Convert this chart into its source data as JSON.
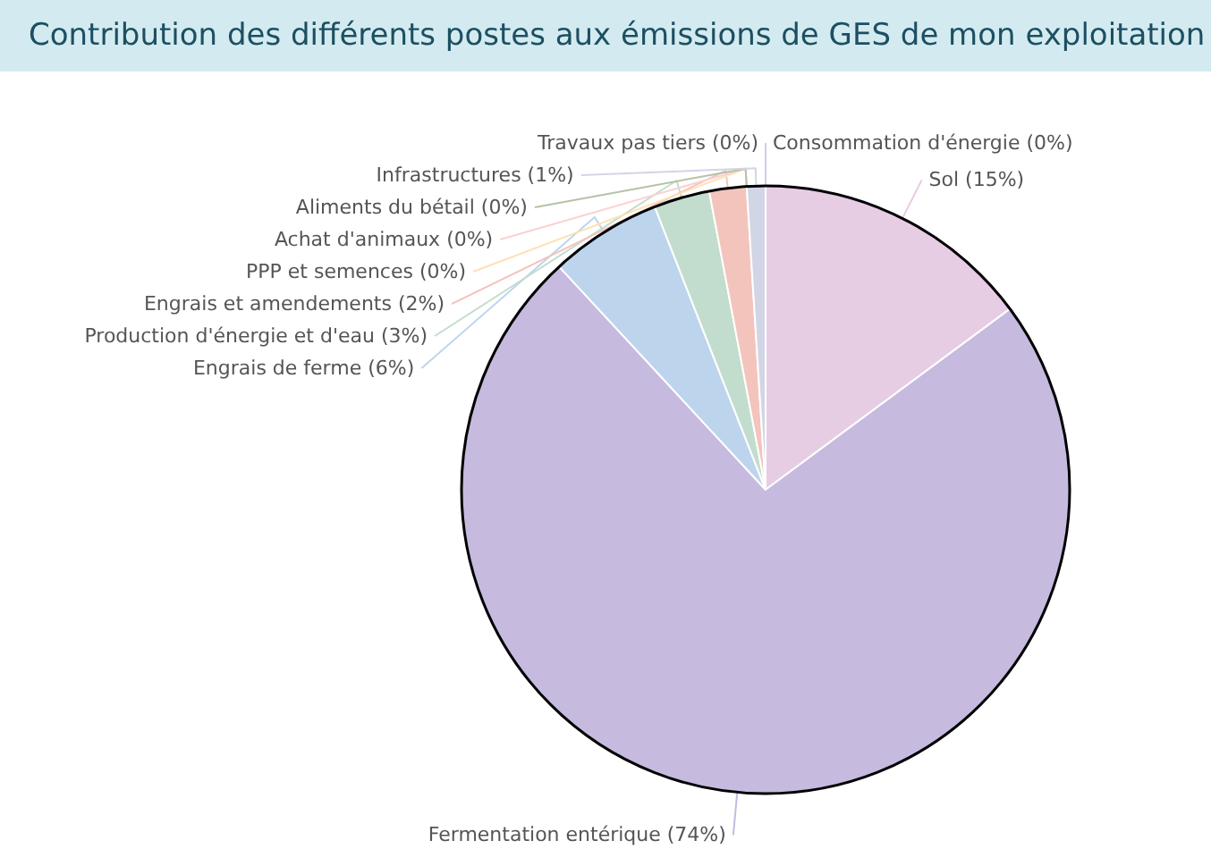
{
  "chart_data": {
    "type": "pie",
    "title": "Contribution des différents postes aux émissions de GES de mon exploitation",
    "categories": [
      "Consommation d'énergie",
      "Sol",
      "Fermentation entérique",
      "Engrais de ferme",
      "Production d'énergie et d'eau",
      "Engrais et amendements",
      "PPP et semences",
      "Achat d'animaux",
      "Aliments du bétail",
      "Infrastructures",
      "Travaux pas tiers"
    ],
    "values": [
      0,
      15,
      74,
      6,
      3,
      2,
      0,
      0,
      0,
      1,
      0
    ],
    "value_labels": [
      "(0%)",
      "(15%)",
      "(74%)",
      "(6%)",
      "(3%)",
      "(2%)",
      "(0%)",
      "(0%)",
      "(0%)",
      "(1%)",
      "(0%)"
    ],
    "colors": [
      "#f4c2d7",
      "#e7cde4",
      "#c6badf",
      "#bdd4ed",
      "#c2ddcd",
      "#f3c4bc",
      "#fde2b5",
      "#fbd1d1",
      "#b5c3a5",
      "#d2d5e5",
      "#cfcde6"
    ]
  }
}
